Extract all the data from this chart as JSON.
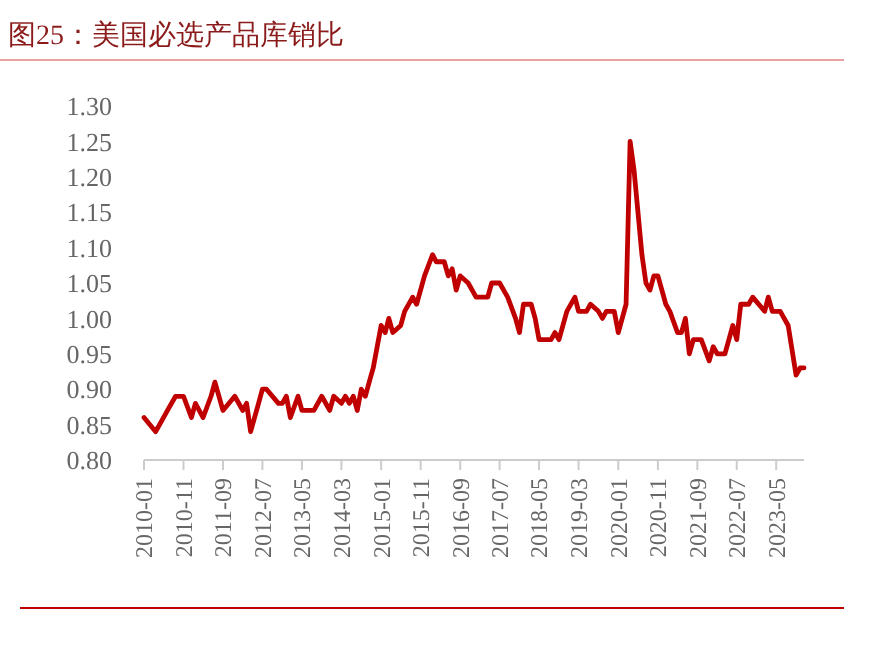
{
  "chart_data": {
    "type": "line",
    "title": "图25：美国必选产品库销比",
    "x": [
      "2010-01",
      "2010-04",
      "2010-07",
      "2010-09",
      "2010-11",
      "2011-01",
      "2011-02",
      "2011-04",
      "2011-06",
      "2011-07",
      "2011-09",
      "2011-12",
      "2012-02",
      "2012-03",
      "2012-04",
      "2012-06",
      "2012-07",
      "2012-08",
      "2012-11",
      "2012-12",
      "2013-01",
      "2013-02",
      "2013-04",
      "2013-05",
      "2013-08",
      "2013-10",
      "2013-12",
      "2014-01",
      "2014-03",
      "2014-04",
      "2014-05",
      "2014-06",
      "2014-07",
      "2014-08",
      "2014-09",
      "2014-10",
      "2014-11",
      "2015-01",
      "2015-02",
      "2015-03",
      "2015-04",
      "2015-06",
      "2015-07",
      "2015-09",
      "2015-10",
      "2015-12",
      "2016-02",
      "2016-03",
      "2016-05",
      "2016-06",
      "2016-07",
      "2016-08",
      "2016-09",
      "2016-11",
      "2017-01",
      "2017-04",
      "2017-05",
      "2017-07",
      "2017-09",
      "2017-11",
      "2017-12",
      "2018-01",
      "2018-03",
      "2018-04",
      "2018-05",
      "2018-08",
      "2018-09",
      "2018-10",
      "2018-12",
      "2019-02",
      "2019-03",
      "2019-05",
      "2019-06",
      "2019-08",
      "2019-09",
      "2019-10",
      "2019-12",
      "2020-01",
      "2020-03",
      "2020-04",
      "2020-05",
      "2020-07",
      "2020-08",
      "2020-09",
      "2020-10",
      "2020-11",
      "2021-01",
      "2021-02",
      "2021-04",
      "2021-05",
      "2021-06",
      "2021-07",
      "2021-08",
      "2021-10",
      "2021-12",
      "2022-01",
      "2022-02",
      "2022-04",
      "2022-06",
      "2022-07",
      "2022-08",
      "2022-10",
      "2022-11",
      "2023-02",
      "2023-03",
      "2023-04",
      "2023-06",
      "2023-08",
      "2023-10",
      "2023-11",
      "2023-12"
    ],
    "series": [
      {
        "color": "#c00000",
        "values": [
          0.86,
          0.84,
          0.87,
          0.89,
          0.89,
          0.86,
          0.88,
          0.86,
          0.89,
          0.91,
          0.87,
          0.89,
          0.87,
          0.88,
          0.84,
          0.88,
          0.9,
          0.9,
          0.88,
          0.88,
          0.89,
          0.86,
          0.89,
          0.87,
          0.87,
          0.89,
          0.87,
          0.89,
          0.88,
          0.89,
          0.88,
          0.89,
          0.87,
          0.9,
          0.89,
          0.91,
          0.93,
          0.99,
          0.98,
          1.0,
          0.98,
          0.99,
          1.01,
          1.03,
          1.02,
          1.06,
          1.09,
          1.08,
          1.08,
          1.06,
          1.07,
          1.04,
          1.06,
          1.05,
          1.03,
          1.03,
          1.05,
          1.05,
          1.03,
          1.0,
          0.98,
          1.02,
          1.02,
          1.0,
          0.97,
          0.97,
          0.98,
          0.97,
          1.01,
          1.03,
          1.01,
          1.01,
          1.02,
          1.01,
          1.0,
          1.01,
          1.01,
          0.98,
          1.02,
          1.25,
          1.21,
          1.09,
          1.05,
          1.04,
          1.06,
          1.06,
          1.02,
          1.01,
          0.98,
          0.98,
          1.0,
          0.95,
          0.97,
          0.97,
          0.94,
          0.96,
          0.95,
          0.95,
          0.99,
          0.97,
          1.02,
          1.02,
          1.03,
          1.01,
          1.03,
          1.01,
          1.01,
          0.99,
          0.92,
          0.93,
          0.93
        ]
      }
    ],
    "xlim": [
      "2010-01",
      "2023-12"
    ],
    "xticks": [
      {
        "value": "2010-01",
        "label": "2010-01"
      },
      {
        "value": "2010-11",
        "label": "2010-11"
      },
      {
        "value": "2011-09",
        "label": "2011-09"
      },
      {
        "value": "2012-07",
        "label": "2012-07"
      },
      {
        "value": "2013-05",
        "label": "2013-05"
      },
      {
        "value": "2014-03",
        "label": "2014-03"
      },
      {
        "value": "2015-01",
        "label": "2015-01"
      },
      {
        "value": "2015-11",
        "label": "2015-11"
      },
      {
        "value": "2016-09",
        "label": "2016-09"
      },
      {
        "value": "2017-07",
        "label": "2017-07"
      },
      {
        "value": "2018-05",
        "label": "2018-05"
      },
      {
        "value": "2019-03",
        "label": "2019-03"
      },
      {
        "value": "2020-01",
        "label": "2020-01"
      },
      {
        "value": "2020-11",
        "label": "2020-11"
      },
      {
        "value": "2021-09",
        "label": "2021-09"
      },
      {
        "value": "2022-07",
        "label": "2022-07"
      },
      {
        "value": "2023-05",
        "label": "2023-05"
      }
    ],
    "ylim": [
      0.8,
      1.3
    ],
    "yticks": [
      {
        "value": 0.8,
        "label": "0.80"
      },
      {
        "value": 0.85,
        "label": "0.85"
      },
      {
        "value": 0.9,
        "label": "0.90"
      },
      {
        "value": 0.95,
        "label": "0.95"
      },
      {
        "value": 1.0,
        "label": "1.00"
      },
      {
        "value": 1.05,
        "label": "1.05"
      },
      {
        "value": 1.1,
        "label": "1.10"
      },
      {
        "value": 1.15,
        "label": "1.15"
      },
      {
        "value": 1.2,
        "label": "1.20"
      },
      {
        "value": 1.25,
        "label": "1.25"
      },
      {
        "value": 1.3,
        "label": "1.30"
      }
    ],
    "grid": false
  }
}
